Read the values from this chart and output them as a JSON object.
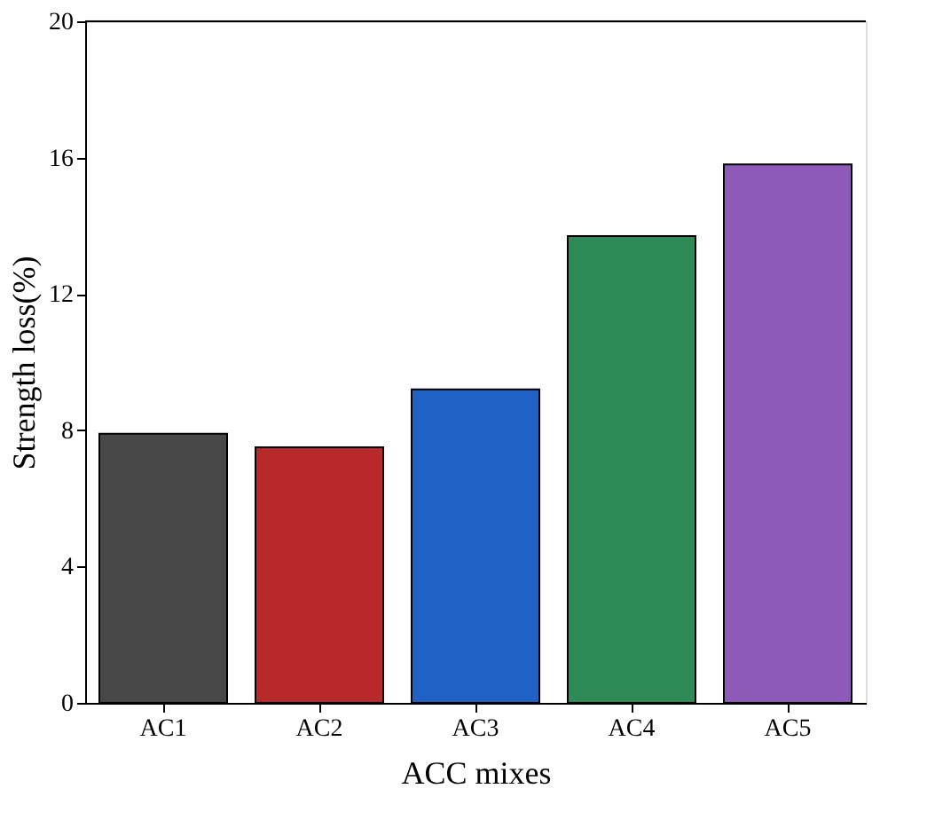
{
  "chart_data": {
    "type": "bar",
    "xlabel": "ACC mixes",
    "ylabel": "Strength loss(%)",
    "categories": [
      "AC1",
      "AC2",
      "AC3",
      "AC4",
      "AC5"
    ],
    "values": [
      7.9,
      7.5,
      9.2,
      13.7,
      15.8
    ],
    "colors": [
      "#484848",
      "#b82a2a",
      "#1f62c4",
      "#2e8b57",
      "#8e5ab8"
    ],
    "ylim": [
      0,
      20
    ],
    "yticks": [
      0,
      4,
      8,
      12,
      16,
      20
    ],
    "grid": false
  }
}
